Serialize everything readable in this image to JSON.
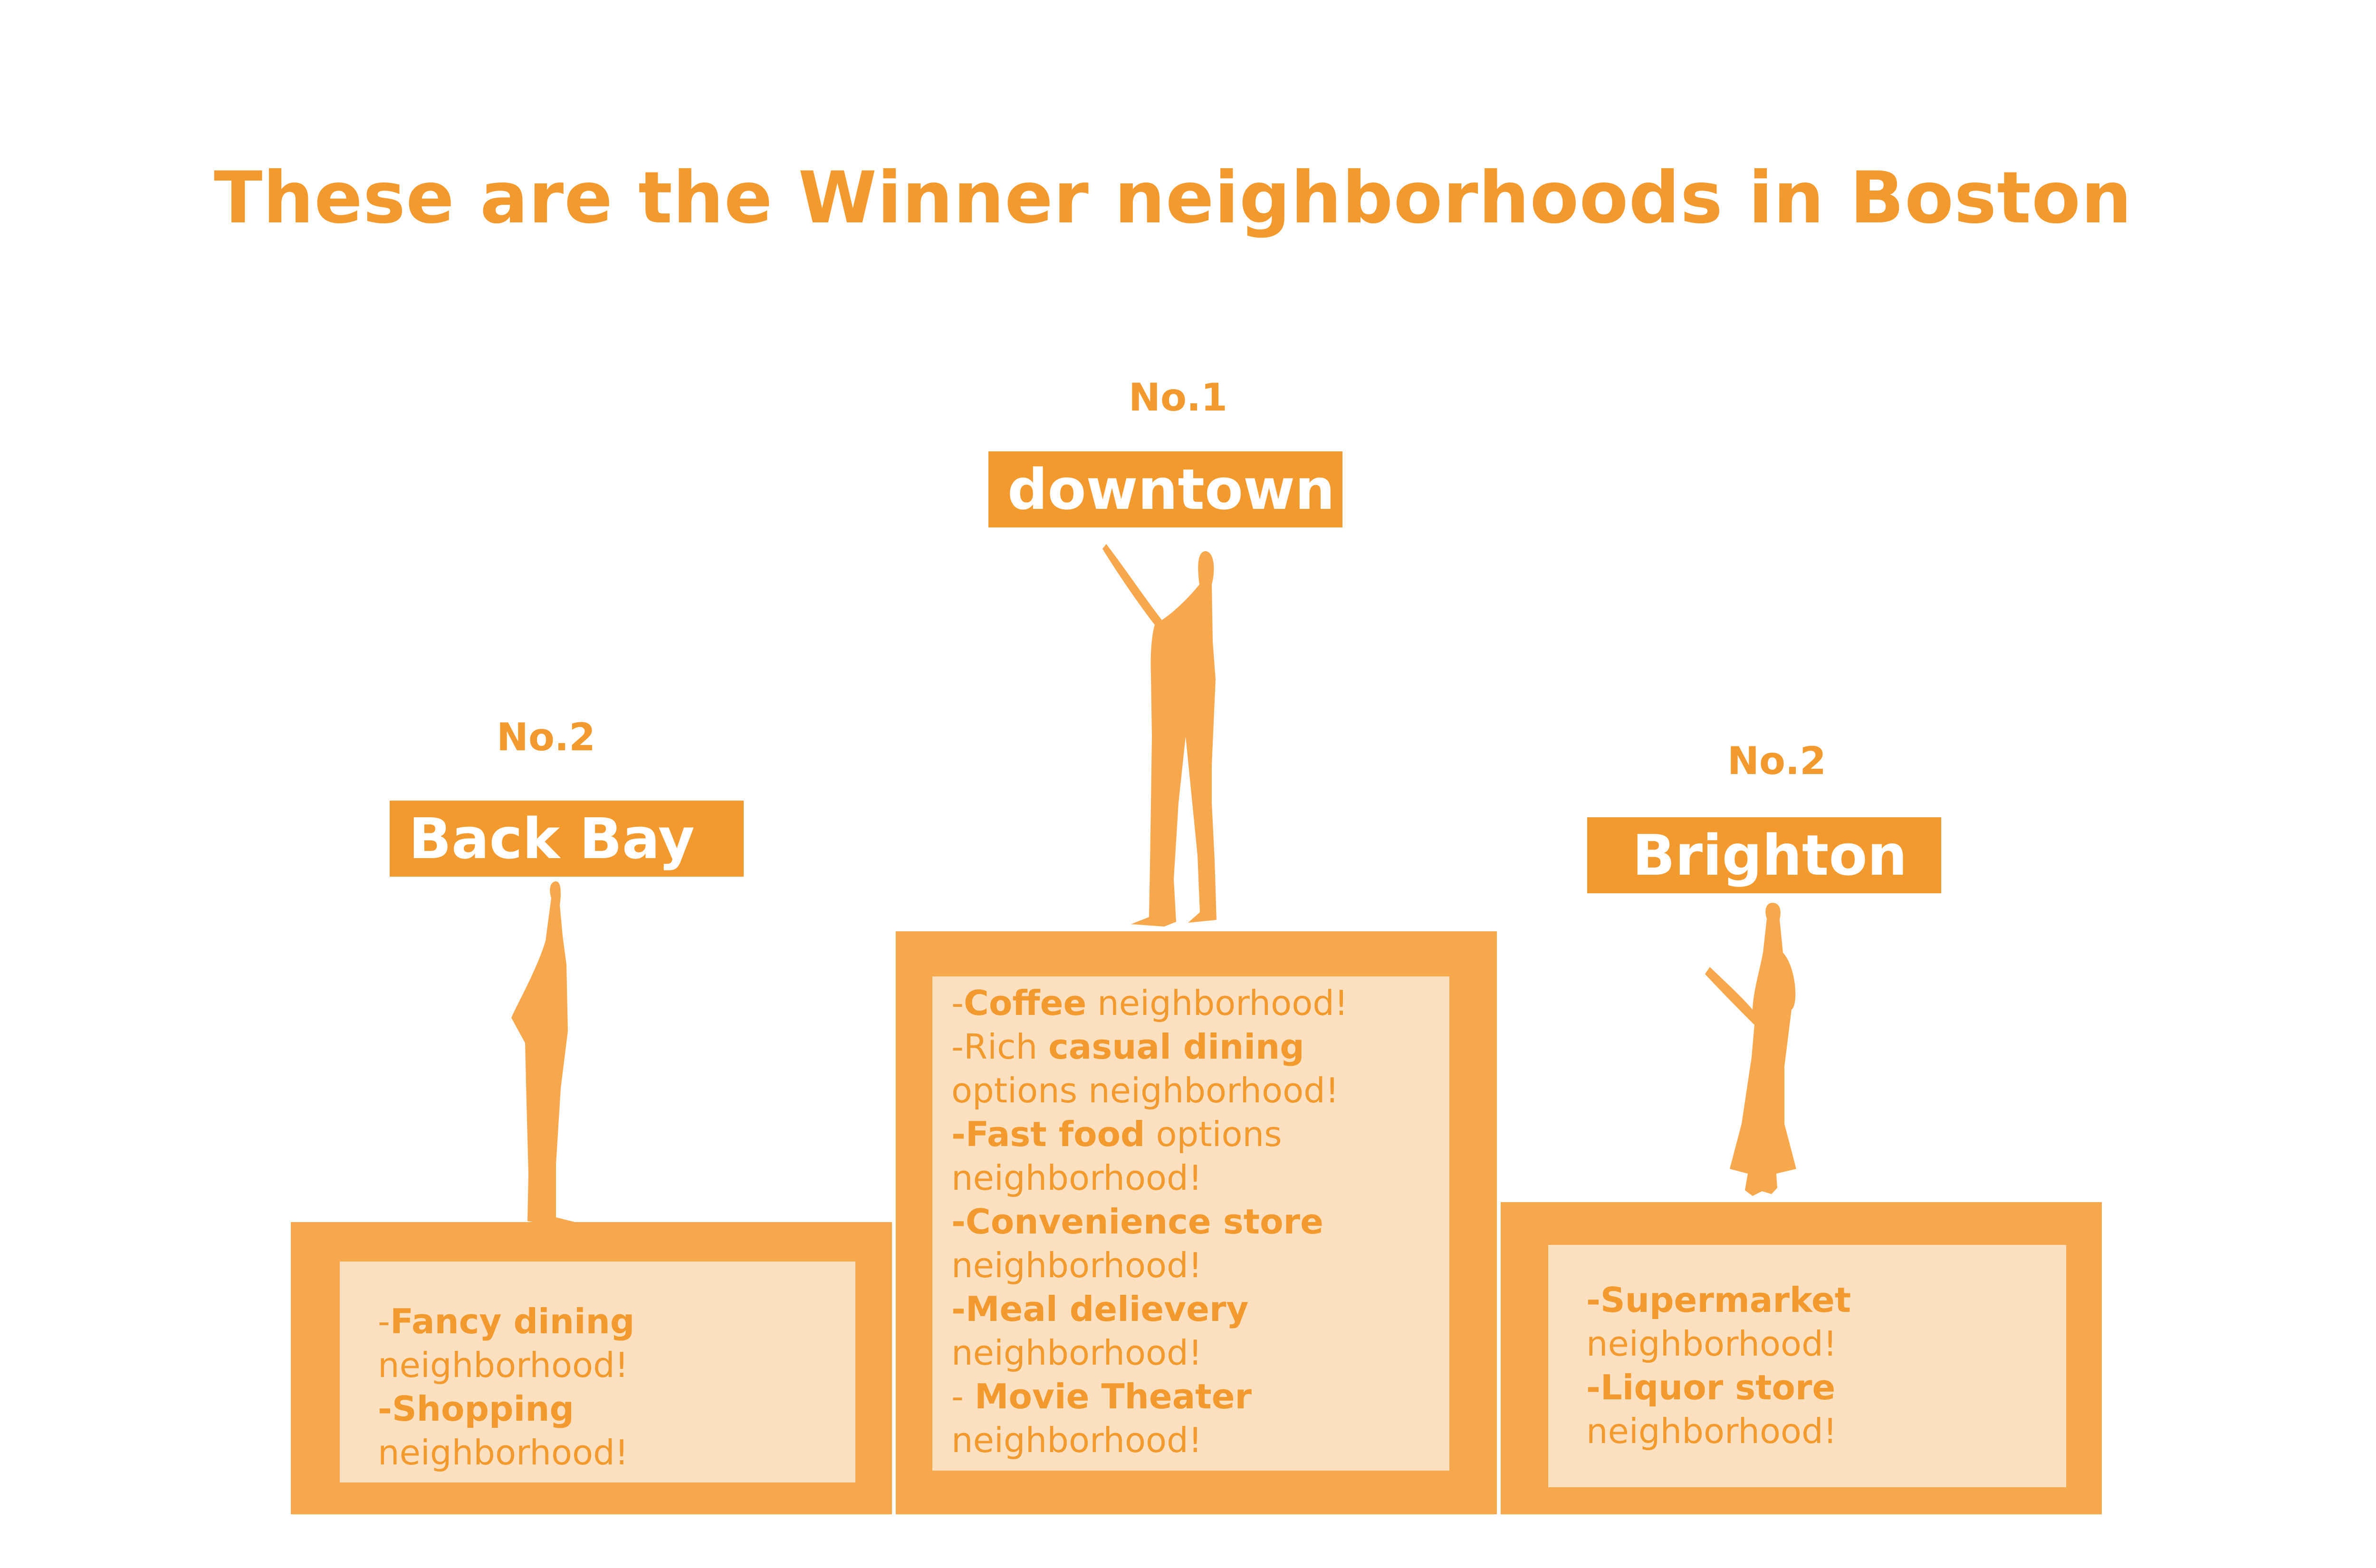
{
  "title": "These are the Winner neighborhoods in Boston",
  "colors": {
    "accent": "#f39a2e",
    "podium": "#f7a74c",
    "panel": "#fde0c0",
    "label_text": "#ffffff"
  },
  "podiums": {
    "first": {
      "rank": "No.1",
      "name": "downtown",
      "items": [
        {
          "prefix": "-",
          "bold": "Coffee",
          "suffix": " neighborhood!"
        },
        {
          "prefix": "-Rich ",
          "bold": "casual dining",
          "suffix": " options neighborhood!"
        },
        {
          "prefix": "",
          "bold": "-Fast food",
          "suffix": " options neighborhood!"
        },
        {
          "prefix": "",
          "bold": "-Convenience store",
          "suffix": " neighborhood!"
        },
        {
          "prefix": "",
          "bold": "-Meal delievery",
          "suffix": " neighborhood!"
        },
        {
          "prefix": "- ",
          "bold": "Movie Theater",
          "suffix": " neighborhood!"
        }
      ]
    },
    "left": {
      "rank": "No.2",
      "name": "Back Bay",
      "items": [
        {
          "prefix": "-",
          "bold": "Fancy dining",
          "suffix": " neighborhood!"
        },
        {
          "prefix": "",
          "bold": "-Shopping",
          "suffix": " neighborhood!"
        }
      ]
    },
    "right": {
      "rank": "No.2",
      "name": "Brighton",
      "items": [
        {
          "prefix": "",
          "bold": "-Supermarket",
          "suffix": " neighborhood!"
        },
        {
          "prefix": "",
          "bold": "-Liquor store",
          "suffix": " neighborhood!"
        }
      ]
    }
  }
}
